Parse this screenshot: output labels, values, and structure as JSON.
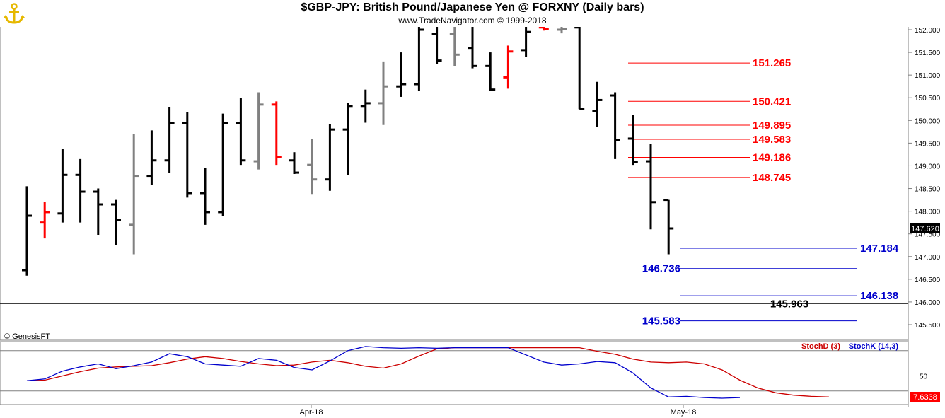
{
  "header": {
    "title": "$GBP-JPY:  British Pound/Japanese Yen @ FORXNY  (Daily bars)",
    "subtitle": "www.TradeNavigator.com © 1999-2018",
    "logo_icon": "anchor-icon"
  },
  "footer": {
    "copyright": "© GenesisFT"
  },
  "colors": {
    "up": "#000000",
    "down_red": "#ff0000",
    "neutral_gray": "#808080",
    "resistance": "#ff0000",
    "support": "#0000cc",
    "stoch_d": "#cc0000",
    "stoch_k": "#0000cc",
    "logo": "#e6b800"
  },
  "chart_data": [
    {
      "type": "ohlc",
      "title": "$GBP-JPY:  British Pound/Japanese Yen @ FORXNY  (Daily bars)",
      "ylim": [
        145.2,
        152.1
      ],
      "y_ticks": [
        "152.000",
        "151.500",
        "151.000",
        "150.500",
        "150.000",
        "149.500",
        "149.000",
        "148.500",
        "148.000",
        "147.500",
        "147.000",
        "146.500",
        "146.000",
        "145.500"
      ],
      "last_price": "147.620",
      "x_labels": [
        "Apr-18",
        "May-18"
      ],
      "bars": [
        {
          "o": 146.7,
          "h": 148.55,
          "l": 146.58,
          "c": 147.9,
          "color": "black"
        },
        {
          "o": 147.75,
          "h": 148.2,
          "l": 147.4,
          "c": 147.98,
          "color": "red"
        },
        {
          "o": 147.95,
          "h": 149.38,
          "l": 147.75,
          "c": 148.8,
          "color": "black"
        },
        {
          "o": 148.8,
          "h": 149.15,
          "l": 147.75,
          "c": 148.43,
          "color": "black"
        },
        {
          "o": 148.43,
          "h": 148.5,
          "l": 147.48,
          "c": 148.15,
          "color": "black"
        },
        {
          "o": 148.15,
          "h": 148.25,
          "l": 147.25,
          "c": 147.8,
          "color": "black"
        },
        {
          "o": 147.7,
          "h": 149.7,
          "l": 147.05,
          "c": 148.78,
          "color": "gray"
        },
        {
          "o": 148.78,
          "h": 149.78,
          "l": 148.58,
          "c": 149.12,
          "color": "black"
        },
        {
          "o": 149.12,
          "h": 150.3,
          "l": 148.85,
          "c": 149.95,
          "color": "black"
        },
        {
          "o": 149.95,
          "h": 150.18,
          "l": 148.3,
          "c": 148.4,
          "color": "black"
        },
        {
          "o": 148.4,
          "h": 148.95,
          "l": 147.7,
          "c": 147.98,
          "color": "black"
        },
        {
          "o": 147.98,
          "h": 150.15,
          "l": 147.9,
          "c": 149.95,
          "color": "black"
        },
        {
          "o": 149.95,
          "h": 150.5,
          "l": 149.02,
          "c": 149.12,
          "color": "black"
        },
        {
          "o": 149.1,
          "h": 150.62,
          "l": 148.92,
          "c": 150.35,
          "color": "gray"
        },
        {
          "o": 150.35,
          "h": 150.42,
          "l": 149.02,
          "c": 149.2,
          "color": "red"
        },
        {
          "o": 149.12,
          "h": 149.3,
          "l": 148.82,
          "c": 148.85,
          "color": "black"
        },
        {
          "o": 149.02,
          "h": 149.6,
          "l": 148.38,
          "c": 148.7,
          "color": "gray"
        },
        {
          "o": 148.7,
          "h": 149.92,
          "l": 148.45,
          "c": 149.8,
          "color": "black"
        },
        {
          "o": 149.8,
          "h": 150.38,
          "l": 148.8,
          "c": 150.32,
          "color": "black"
        },
        {
          "o": 150.32,
          "h": 150.68,
          "l": 149.95,
          "c": 150.38,
          "color": "black"
        },
        {
          "o": 150.38,
          "h": 151.3,
          "l": 149.9,
          "c": 150.75,
          "color": "gray"
        },
        {
          "o": 150.75,
          "h": 151.5,
          "l": 150.52,
          "c": 150.8,
          "color": "black"
        },
        {
          "o": 150.8,
          "h": 152.1,
          "l": 150.65,
          "c": 152.0,
          "color": "black"
        },
        {
          "o": 151.9,
          "h": 152.1,
          "l": 151.25,
          "c": 151.32,
          "color": "black"
        },
        {
          "o": 151.9,
          "h": 152.1,
          "l": 151.2,
          "c": 151.45,
          "color": "gray"
        },
        {
          "o": 151.6,
          "h": 152.1,
          "l": 151.15,
          "c": 151.2,
          "color": "black"
        },
        {
          "o": 151.2,
          "h": 151.5,
          "l": 150.65,
          "c": 150.68,
          "color": "black"
        },
        {
          "o": 150.95,
          "h": 151.65,
          "l": 150.7,
          "c": 151.52,
          "color": "red"
        },
        {
          "o": 151.55,
          "h": 152.1,
          "l": 151.4,
          "c": 151.95,
          "color": "black"
        },
        {
          "o": 152.05,
          "h": 152.1,
          "l": 151.98,
          "c": 152.02,
          "color": "red"
        },
        {
          "o": 152.0,
          "h": 152.1,
          "l": 151.92,
          "c": 152.02,
          "color": "gray"
        },
        {
          "o": 152.05,
          "h": 152.1,
          "l": 150.25,
          "c": 150.25,
          "color": "black"
        },
        {
          "o": 150.2,
          "h": 150.85,
          "l": 149.85,
          "c": 150.45,
          "color": "black"
        },
        {
          "o": 150.55,
          "h": 150.62,
          "l": 149.15,
          "c": 149.57,
          "color": "black"
        },
        {
          "o": 149.6,
          "h": 150.12,
          "l": 149.02,
          "c": 149.08,
          "color": "black"
        },
        {
          "o": 149.1,
          "h": 149.48,
          "l": 147.6,
          "c": 148.2,
          "color": "black"
        },
        {
          "o": 148.25,
          "h": 148.25,
          "l": 147.05,
          "c": 147.62,
          "color": "black"
        }
      ],
      "levels": [
        {
          "value": 151.265,
          "label": "151.265",
          "color": "red",
          "side": "right"
        },
        {
          "value": 150.421,
          "label": "150.421",
          "color": "red",
          "side": "right"
        },
        {
          "value": 149.895,
          "label": "149.895",
          "color": "red",
          "side": "right"
        },
        {
          "value": 149.583,
          "label": "149.583",
          "color": "red",
          "side": "right"
        },
        {
          "value": 149.186,
          "label": "149.186",
          "color": "red",
          "side": "right"
        },
        {
          "value": 148.745,
          "label": "148.745",
          "color": "red",
          "side": "right"
        },
        {
          "value": 147.184,
          "label": "147.184",
          "color": "blue",
          "side": "right"
        },
        {
          "value": 146.736,
          "label": "146.736",
          "color": "blue",
          "side": "left"
        },
        {
          "value": 146.138,
          "label": "146.138",
          "color": "blue",
          "side": "right"
        },
        {
          "value": 145.963,
          "label": "145.963",
          "color": "black",
          "side": "center"
        },
        {
          "value": 145.583,
          "label": "145.583",
          "color": "blue",
          "side": "left"
        }
      ]
    },
    {
      "type": "line",
      "ylim": [
        0,
        100
      ],
      "y_ticks": [
        "50"
      ],
      "last_value": "7.6338",
      "series": [
        {
          "name": "StochD (3)",
          "color": "red",
          "values": [
            42,
            43,
            50,
            57,
            63,
            65,
            66,
            67,
            72,
            78,
            82,
            79,
            74,
            70,
            67,
            68,
            73,
            76,
            72,
            66,
            63,
            70,
            83,
            95,
            97,
            97,
            97,
            97,
            97,
            97,
            97,
            97,
            91,
            86,
            78,
            73,
            72,
            73,
            70,
            60,
            43,
            30,
            22,
            18,
            16,
            15
          ]
        },
        {
          "name": "StochK (14,3)",
          "color": "blue",
          "values": [
            42,
            45,
            58,
            65,
            70,
            62,
            67,
            73,
            87,
            82,
            70,
            68,
            66,
            79,
            76,
            64,
            60,
            75,
            92,
            99,
            97,
            96,
            97,
            96,
            97,
            97,
            97,
            97,
            85,
            73,
            68,
            70,
            74,
            72,
            55,
            30,
            15,
            16,
            14,
            13,
            14
          ]
        }
      ],
      "legend": [
        "StochD (3)",
        "StochK (14,3)"
      ]
    }
  ]
}
